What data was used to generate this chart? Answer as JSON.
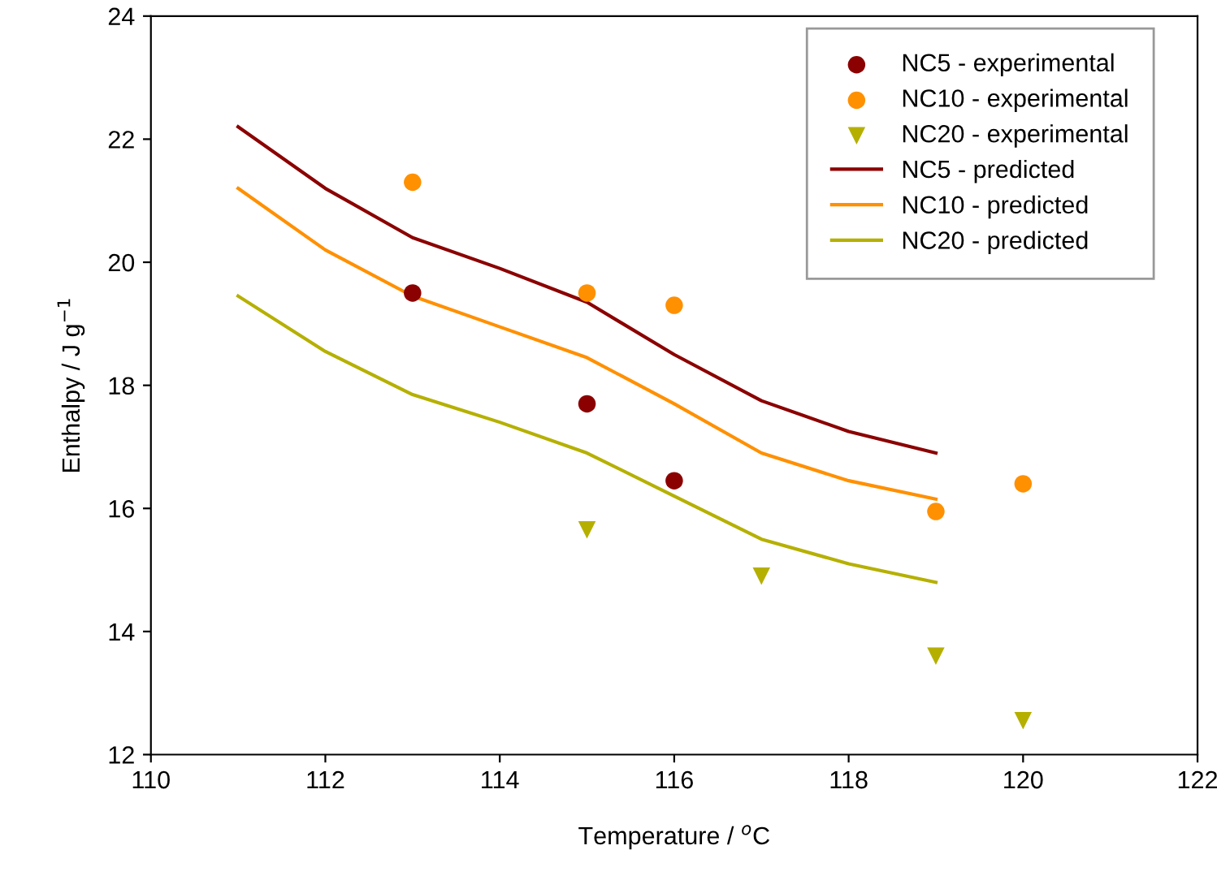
{
  "chart_data": {
    "type": "scatter",
    "xlabel": "Temperature / $^{o}$C",
    "ylabel": "Enthalpy / J g$^{−1}$",
    "xlim": [
      110,
      122
    ],
    "ylim": [
      12,
      24
    ],
    "xticks": [
      110,
      112,
      114,
      116,
      118,
      120,
      122
    ],
    "yticks": [
      12,
      14,
      16,
      18,
      20,
      22,
      24
    ],
    "grid": false,
    "legend": "top right",
    "series": [
      {
        "name": "NC5 - experimental",
        "marker": "circle",
        "color": "#8b0000",
        "x": [
          113,
          115,
          116
        ],
        "values": [
          19.5,
          17.7,
          16.45
        ]
      },
      {
        "name": "NC10 - experimental",
        "marker": "circle",
        "color": "#ff9000",
        "x": [
          113,
          115,
          116,
          119,
          120
        ],
        "values": [
          21.3,
          19.5,
          19.3,
          15.95,
          16.4
        ]
      },
      {
        "name": "NC20 - experimental",
        "marker": "triangle",
        "color": "#b5b000",
        "x": [
          115,
          117,
          119,
          120
        ],
        "values": [
          15.65,
          14.9,
          13.6,
          12.55
        ]
      },
      {
        "name": "NC5 - predicted",
        "type": "line",
        "marker": "none",
        "color": "#8b0000",
        "x": [
          111,
          112,
          113,
          114,
          115,
          116,
          117,
          118,
          119
        ],
        "values": [
          22.2,
          21.2,
          20.4,
          19.9,
          19.35,
          18.5,
          17.75,
          17.25,
          16.9
        ]
      },
      {
        "name": "NC10 - predicted",
        "type": "line",
        "marker": "none",
        "color": "#ff9000",
        "x": [
          111,
          112,
          113,
          114,
          115,
          116,
          117,
          118,
          119
        ],
        "values": [
          21.2,
          20.2,
          19.45,
          18.95,
          18.45,
          17.7,
          16.9,
          16.45,
          16.15
        ]
      },
      {
        "name": "NC20 - predicted",
        "type": "line",
        "marker": "none",
        "color": "#b5b000",
        "x": [
          111,
          112,
          113,
          114,
          115,
          116,
          117,
          118,
          119
        ],
        "values": [
          19.45,
          18.55,
          17.85,
          17.4,
          16.9,
          16.2,
          15.5,
          15.1,
          14.8
        ]
      }
    ]
  }
}
